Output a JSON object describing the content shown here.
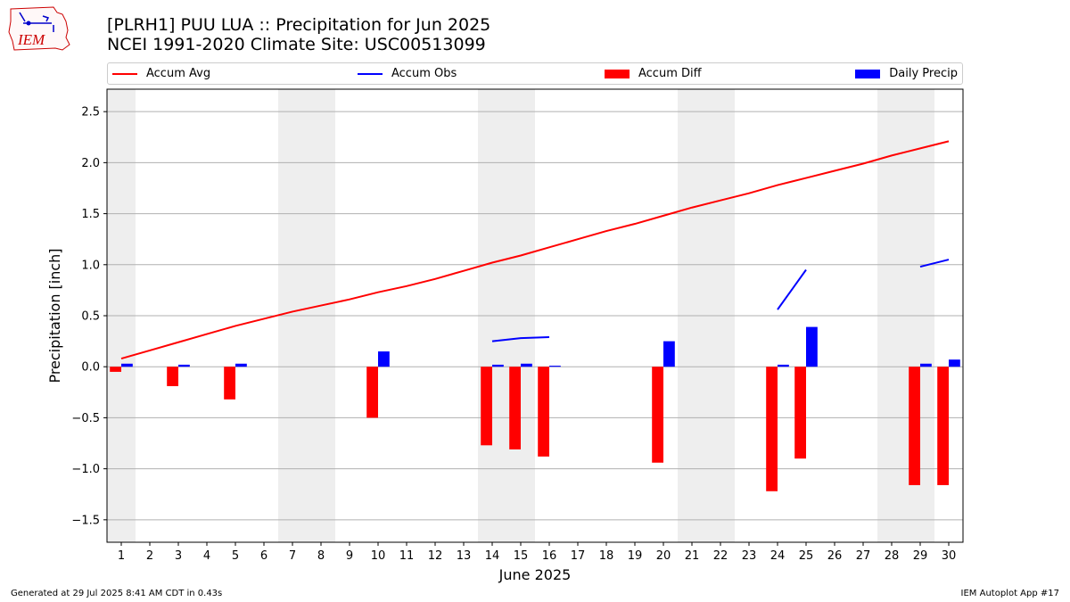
{
  "header": {
    "title_line1": "[PLRH1] PUU LUA :: Precipitation for Jun 2025",
    "title_line2": "NCEI 1991-2020 Climate Site: USC00513099"
  },
  "logo": {
    "text": "IEM",
    "color": "#cc0000"
  },
  "legend": {
    "accum_avg": "Accum Avg",
    "accum_obs": "Accum Obs",
    "accum_diff": "Accum Diff",
    "daily_precip": "Daily Precip"
  },
  "footer": {
    "generated": "Generated at 29 Jul 2025 8:41 AM CDT in 0.43s",
    "app": "IEM Autoplot App #17"
  },
  "colors": {
    "avg": "#ff0000",
    "obs": "#0000ff",
    "diff": "#ff0000",
    "daily": "#0000ff",
    "weekend": "#eeeeee"
  },
  "chart_data": {
    "type": "bar",
    "xlabel": "June 2025",
    "ylabel": "Precipitation [inch]",
    "ylim": [
      -1.72,
      2.72
    ],
    "yticks": [
      -1.5,
      -1.0,
      -0.5,
      0.0,
      0.5,
      1.0,
      1.5,
      2.0,
      2.5
    ],
    "ytick_labels": [
      "−1.5",
      "−1.0",
      "−0.5",
      "0.0",
      "0.5",
      "1.0",
      "1.5",
      "2.0",
      "2.5"
    ],
    "grid": "horizontal",
    "legend_position": "top",
    "days": [
      1,
      2,
      3,
      4,
      5,
      6,
      7,
      8,
      9,
      10,
      11,
      12,
      13,
      14,
      15,
      16,
      17,
      18,
      19,
      20,
      21,
      22,
      23,
      24,
      25,
      26,
      27,
      28,
      29,
      30
    ],
    "weekend_shading": [
      [
        0.5,
        1.5
      ],
      [
        6.5,
        8.5
      ],
      [
        13.5,
        15.5
      ],
      [
        20.5,
        22.5
      ],
      [
        27.5,
        29.5
      ]
    ],
    "series": [
      {
        "name": "Accum Avg",
        "kind": "line",
        "values": [
          0.08,
          0.16,
          0.24,
          0.32,
          0.4,
          0.47,
          0.54,
          0.6,
          0.66,
          0.73,
          0.79,
          0.86,
          0.94,
          1.02,
          1.09,
          1.17,
          1.25,
          1.33,
          1.4,
          1.48,
          1.56,
          1.63,
          1.7,
          1.78,
          1.85,
          1.92,
          1.99,
          2.07,
          2.14,
          2.21
        ]
      },
      {
        "name": "Accum Obs",
        "kind": "line",
        "values": [
          null,
          null,
          null,
          null,
          null,
          null,
          null,
          null,
          null,
          null,
          null,
          null,
          null,
          0.25,
          0.28,
          0.29,
          null,
          null,
          null,
          null,
          null,
          null,
          null,
          0.56,
          0.95,
          null,
          null,
          null,
          0.98,
          1.05
        ]
      },
      {
        "name": "Accum Diff",
        "kind": "bar",
        "values": [
          -0.05,
          0,
          -0.19,
          0,
          -0.32,
          0,
          0,
          0,
          0,
          -0.5,
          0,
          0,
          0,
          -0.77,
          -0.81,
          -0.88,
          0,
          0,
          0,
          -0.94,
          0,
          0,
          0,
          -1.22,
          -0.9,
          0,
          0,
          0,
          -1.16,
          -1.16
        ]
      },
      {
        "name": "Daily Precip",
        "kind": "bar",
        "values": [
          0.03,
          0,
          0.02,
          0,
          0.03,
          0,
          0,
          0,
          0,
          0.15,
          0,
          0,
          0,
          0.02,
          0.03,
          0.01,
          0,
          0,
          0,
          0.25,
          0,
          0,
          0,
          0.02,
          0.39,
          0,
          0,
          0,
          0.03,
          0.07
        ]
      }
    ]
  }
}
